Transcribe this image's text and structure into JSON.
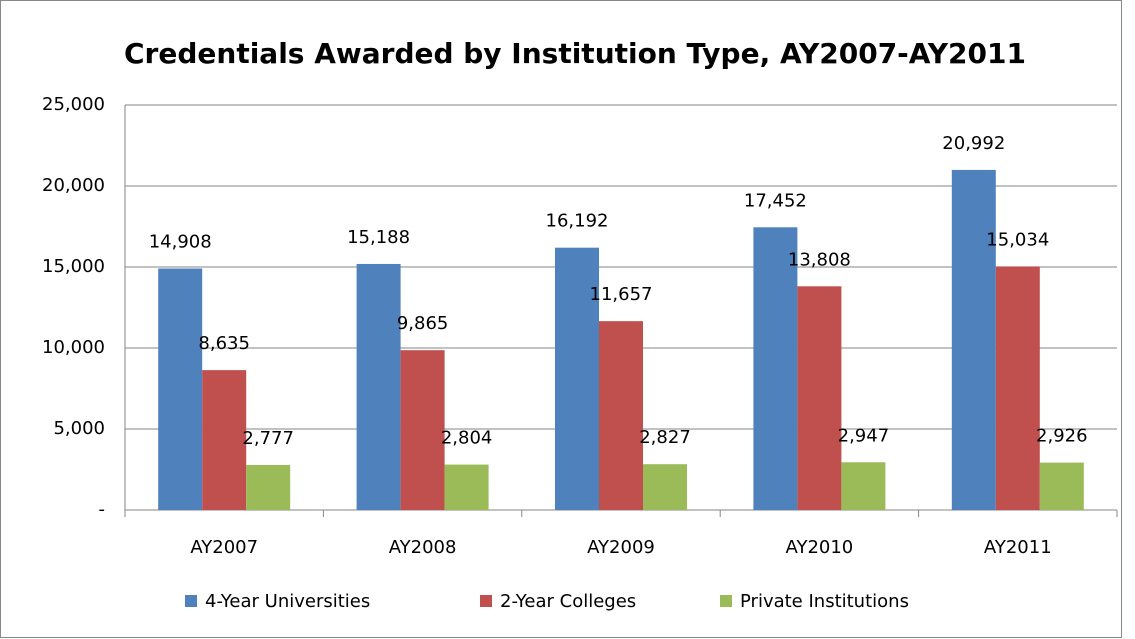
{
  "chart_data": {
    "type": "bar",
    "title": "Credentials Awarded by Institution Type, AY2007-AY2011",
    "categories": [
      "AY2007",
      "AY2008",
      "AY2009",
      "AY2010",
      "AY2011"
    ],
    "series": [
      {
        "name": "4-Year Universities",
        "color": "#4f81bd",
        "values": [
          14908,
          15188,
          16192,
          17452,
          20992
        ],
        "value_labels": [
          "14,908",
          "15,188",
          "16,192",
          "17,452",
          "20,992"
        ]
      },
      {
        "name": "2-Year Colleges",
        "color": "#c0504d",
        "values": [
          8635,
          9865,
          11657,
          13808,
          15034
        ],
        "value_labels": [
          "8,635",
          "9,865",
          "11,657",
          "13,808",
          "15,034"
        ]
      },
      {
        "name": "Private Institutions",
        "color": "#9bbb59",
        "values": [
          2777,
          2804,
          2827,
          2947,
          2926
        ],
        "value_labels": [
          "2,777",
          "2,804",
          "2,827",
          "2,947",
          "2,926"
        ]
      }
    ],
    "ylim": [
      0,
      25000
    ],
    "yticks": [
      {
        "value": 0,
        "label": "-"
      },
      {
        "value": 5000,
        "label": "5,000"
      },
      {
        "value": 10000,
        "label": "10,000"
      },
      {
        "value": 15000,
        "label": "15,000"
      },
      {
        "value": 20000,
        "label": "20,000"
      },
      {
        "value": 25000,
        "label": "25,000"
      }
    ],
    "grid": true,
    "legend": "bottom"
  }
}
